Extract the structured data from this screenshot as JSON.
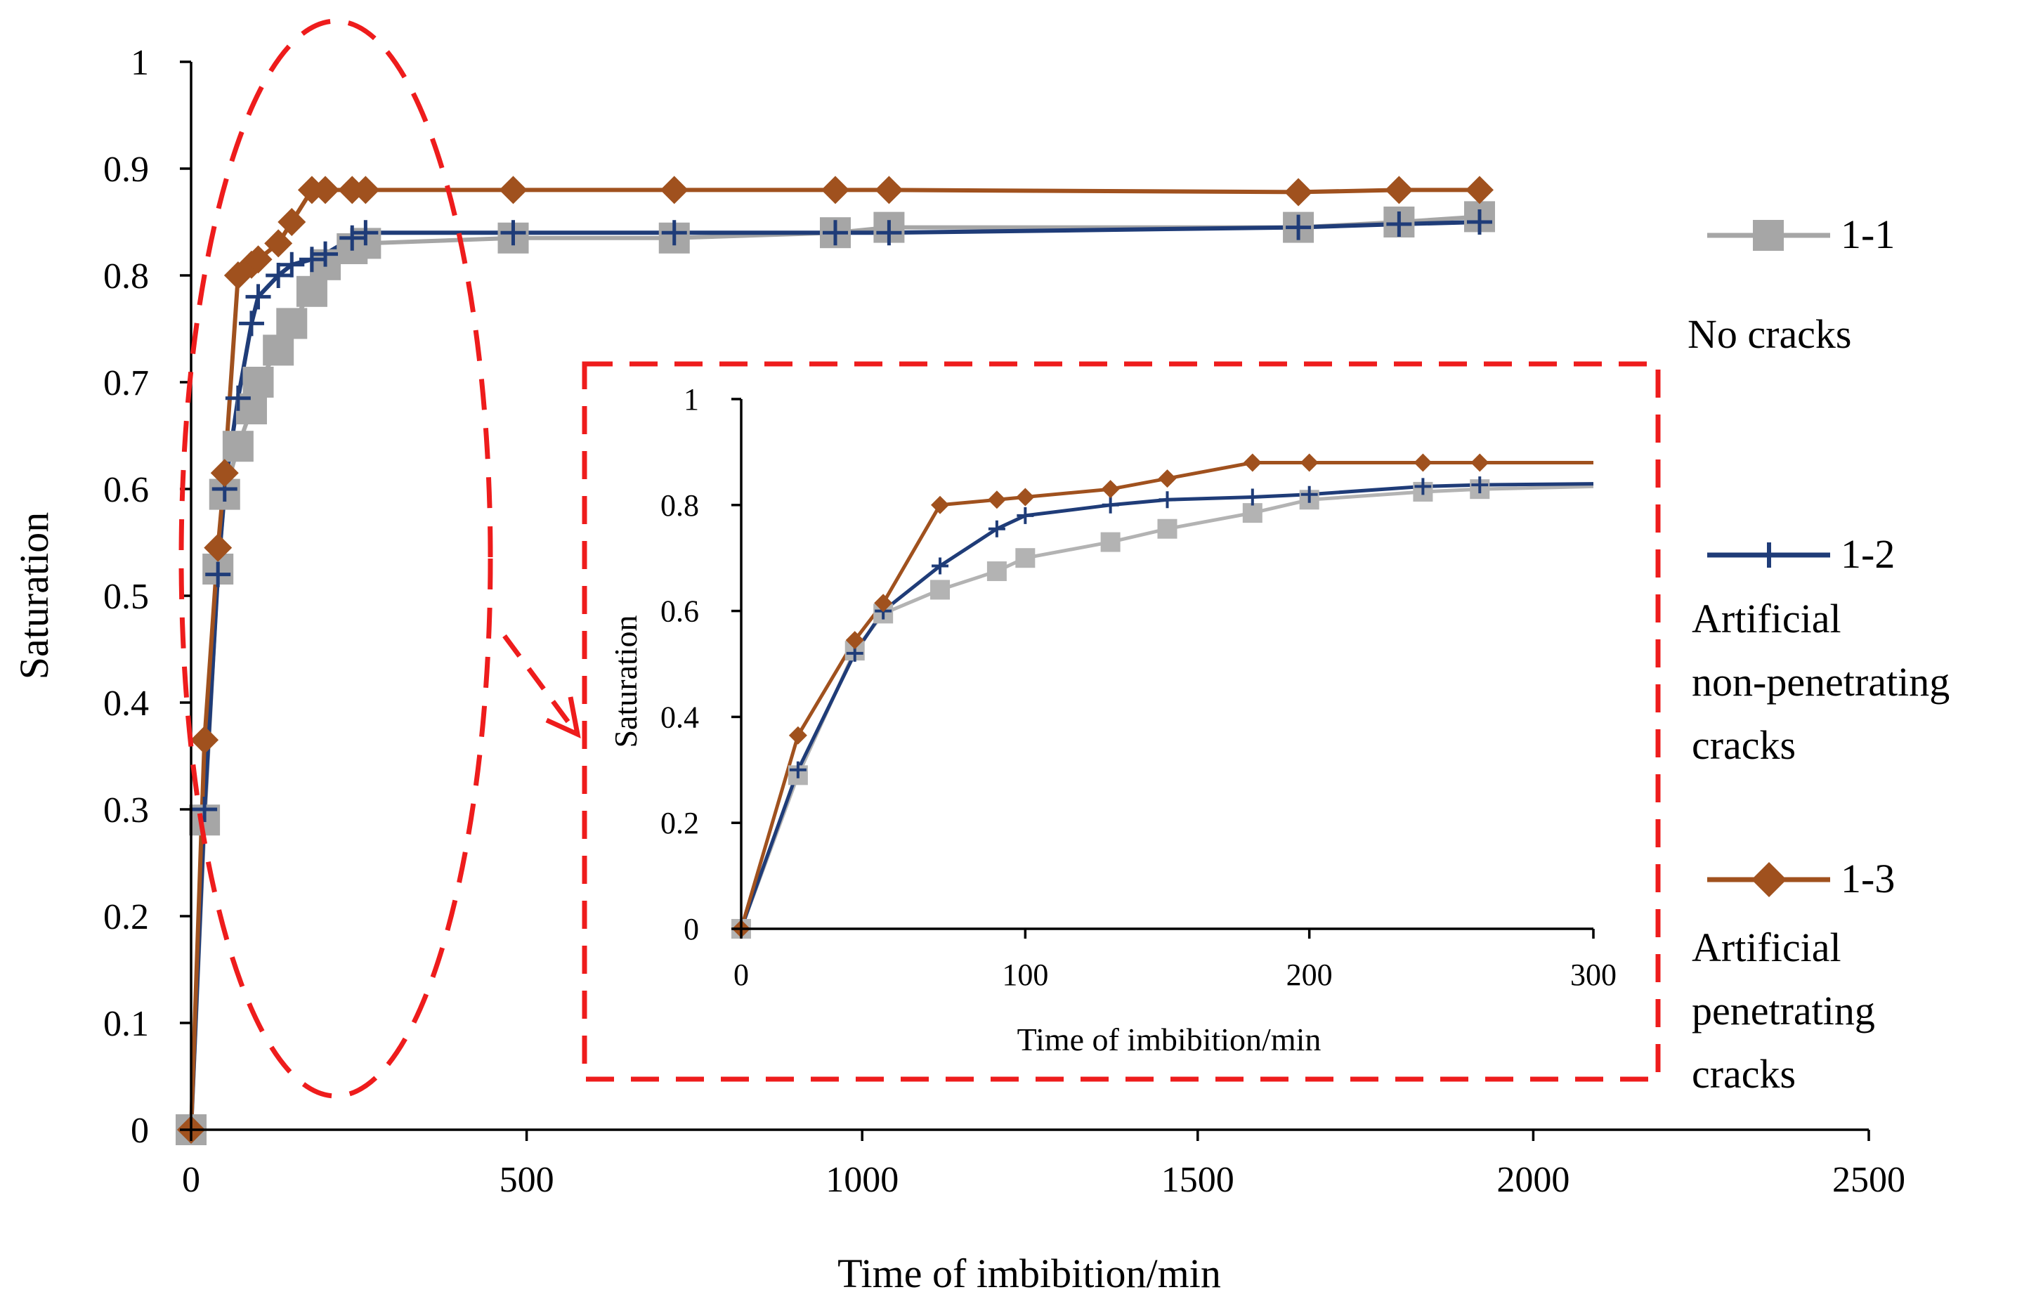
{
  "chart_data": [
    {
      "type": "line",
      "role": "main",
      "xlabel": "Time of imbibition/min",
      "ylabel": "Saturation",
      "xlim": [
        0,
        2500
      ],
      "ylim": [
        0,
        1
      ],
      "x_ticks": [
        "0",
        "500",
        "1000",
        "1500",
        "2000",
        "2500"
      ],
      "y_ticks": [
        "0",
        "0.1",
        "0.2",
        "0.3",
        "0.4",
        "0.5",
        "0.6",
        "0.7",
        "0.8",
        "0.9",
        "1"
      ],
      "grid": false,
      "series": [
        {
          "name": "1-1",
          "description": "No cracks",
          "color": "#a6a6a6",
          "marker": "square",
          "x": [
            0,
            20,
            40,
            50,
            70,
            90,
            100,
            130,
            150,
            180,
            200,
            240,
            260,
            480,
            720,
            960,
            1040,
            1650,
            1800,
            1920
          ],
          "y": [
            0,
            0.29,
            0.525,
            0.595,
            0.64,
            0.675,
            0.7,
            0.73,
            0.755,
            0.785,
            0.81,
            0.825,
            0.83,
            0.835,
            0.835,
            0.84,
            0.845,
            0.845,
            0.85,
            0.855
          ]
        },
        {
          "name": "1-2",
          "description": "Artificial non-penetrating cracks",
          "color": "#1f3c78",
          "marker": "plus",
          "x": [
            0,
            20,
            40,
            50,
            70,
            90,
            100,
            130,
            150,
            180,
            200,
            240,
            260,
            480,
            720,
            960,
            1040,
            1650,
            1800,
            1920
          ],
          "y": [
            0,
            0.3,
            0.52,
            0.6,
            0.685,
            0.755,
            0.78,
            0.8,
            0.81,
            0.815,
            0.82,
            0.835,
            0.84,
            0.84,
            0.84,
            0.84,
            0.84,
            0.845,
            0.848,
            0.85
          ]
        },
        {
          "name": "1-3",
          "description": "Artificial penetrating cracks",
          "color": "#a0511e",
          "marker": "diamond",
          "x": [
            0,
            20,
            40,
            50,
            70,
            90,
            100,
            130,
            150,
            180,
            200,
            240,
            260,
            480,
            720,
            960,
            1040,
            1650,
            1800,
            1920
          ],
          "y": [
            0,
            0.365,
            0.545,
            0.615,
            0.8,
            0.81,
            0.815,
            0.83,
            0.85,
            0.88,
            0.88,
            0.88,
            0.88,
            0.88,
            0.88,
            0.88,
            0.88,
            0.878,
            0.88,
            0.88
          ]
        }
      ]
    },
    {
      "type": "line",
      "role": "inset",
      "xlabel": "Time of imbibition/min",
      "ylabel": "Saturation",
      "xlim": [
        0,
        300
      ],
      "ylim": [
        0,
        1
      ],
      "x_ticks": [
        "0",
        "100",
        "200",
        "300"
      ],
      "y_ticks": [
        "0",
        "0.2",
        "0.4",
        "0.6",
        "0.8",
        "1"
      ],
      "grid": false,
      "series": [
        {
          "name": "1-1",
          "color": "#b3b3b3",
          "marker": "square",
          "x": [
            0,
            20,
            40,
            50,
            70,
            90,
            100,
            130,
            150,
            180,
            200,
            240,
            260,
            300
          ],
          "y": [
            0,
            0.29,
            0.525,
            0.595,
            0.64,
            0.675,
            0.7,
            0.73,
            0.755,
            0.785,
            0.81,
            0.825,
            0.83,
            0.835
          ]
        },
        {
          "name": "1-2",
          "color": "#1f3c78",
          "marker": "plus",
          "x": [
            0,
            20,
            40,
            50,
            70,
            90,
            100,
            130,
            150,
            180,
            200,
            240,
            260,
            300
          ],
          "y": [
            0,
            0.3,
            0.52,
            0.6,
            0.685,
            0.755,
            0.78,
            0.8,
            0.81,
            0.815,
            0.82,
            0.835,
            0.838,
            0.84
          ]
        },
        {
          "name": "1-3",
          "color": "#a0511e",
          "marker": "diamond",
          "x": [
            0,
            20,
            40,
            50,
            70,
            90,
            100,
            130,
            150,
            180,
            200,
            240,
            260,
            300
          ],
          "y": [
            0,
            0.365,
            0.545,
            0.615,
            0.8,
            0.81,
            0.815,
            0.83,
            0.85,
            0.88,
            0.88,
            0.88,
            0.88,
            0.88
          ]
        }
      ]
    }
  ],
  "annotation_color": "#ee1c1c"
}
